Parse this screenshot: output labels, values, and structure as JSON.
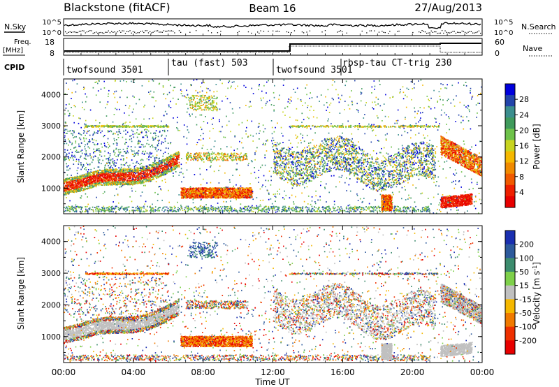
{
  "header": {
    "title": "Blackstone (fitACF)",
    "beam": "Beam 16",
    "date": "27/Aug/2013"
  },
  "top_panel": {
    "left_label": "N.Sky",
    "left_ticks": [
      "10^5",
      "10^0"
    ],
    "right_label": "N.Search",
    "right_ticks": [
      "10^5",
      "10^0"
    ]
  },
  "freq_panel": {
    "left_label_line1": "Freq.",
    "left_label_line2": "[MHz]",
    "left_ticks": [
      "18",
      "8"
    ],
    "right_label": "Nave",
    "right_ticks": [
      "60",
      "0"
    ]
  },
  "cpid": {
    "label": "CPID",
    "segments": [
      {
        "name": "twofsound 3501",
        "start_hour": 0
      },
      {
        "name": "tau (fast) 503",
        "start_hour": 6
      },
      {
        "name": "twofsound 3501",
        "start_hour": 12
      },
      {
        "name": "rbsp-tau CT-trig 230",
        "start_hour": 16.5
      }
    ]
  },
  "time_axis": {
    "label": "Time UT",
    "ticks": [
      "00:00",
      "04:00",
      "08:00",
      "12:00",
      "16:00",
      "20:00",
      "00:00"
    ]
  },
  "chart_data": [
    {
      "type": "heatmap",
      "ylabel": "Slant Range [km]",
      "ylim": [
        180,
        4500
      ],
      "xlim": [
        0,
        24
      ],
      "yticks": [
        1000,
        2000,
        3000,
        4000
      ],
      "colorbar": {
        "label": "Power [dB]",
        "ticks": [
          "28",
          "24",
          "20",
          "16",
          "12",
          "8",
          "4"
        ],
        "colors": [
          "#0000dd",
          "#2244aa",
          "#3b8e8e",
          "#3f9a5c",
          "#6ec24a",
          "#c8d420",
          "#f5b800",
          "#f08a00",
          "#f05a00",
          "#ee2000",
          "#e80000"
        ]
      },
      "features": [
        {
          "label": "ionospheric band",
          "hours": [
            0,
            6.5
          ],
          "range_km": [
            1000,
            2000
          ]
        },
        {
          "label": "ground scatter",
          "hours": [
            7,
            11
          ],
          "range_km": [
            750,
            900
          ]
        },
        {
          "label": "near-range echoes",
          "hours": [
            21.5,
            23.5
          ],
          "range_km": [
            400,
            700
          ]
        }
      ]
    },
    {
      "type": "heatmap",
      "ylabel": "Slant Range [km]",
      "ylim": [
        180,
        4500
      ],
      "xlim": [
        0,
        24
      ],
      "yticks": [
        1000,
        2000,
        3000,
        4000
      ],
      "colorbar": {
        "label": "Velocity [m s^-1]",
        "ticks": [
          "200",
          "100",
          "50",
          "15",
          "-15",
          "-50",
          "-100",
          "-200"
        ],
        "colors": [
          "#1a2fb0",
          "#2d5a9c",
          "#3c8c6e",
          "#7ed04a",
          "#c0c0c0",
          "#f5b800",
          "#f07a00",
          "#ee3000",
          "#e80000"
        ]
      }
    }
  ]
}
